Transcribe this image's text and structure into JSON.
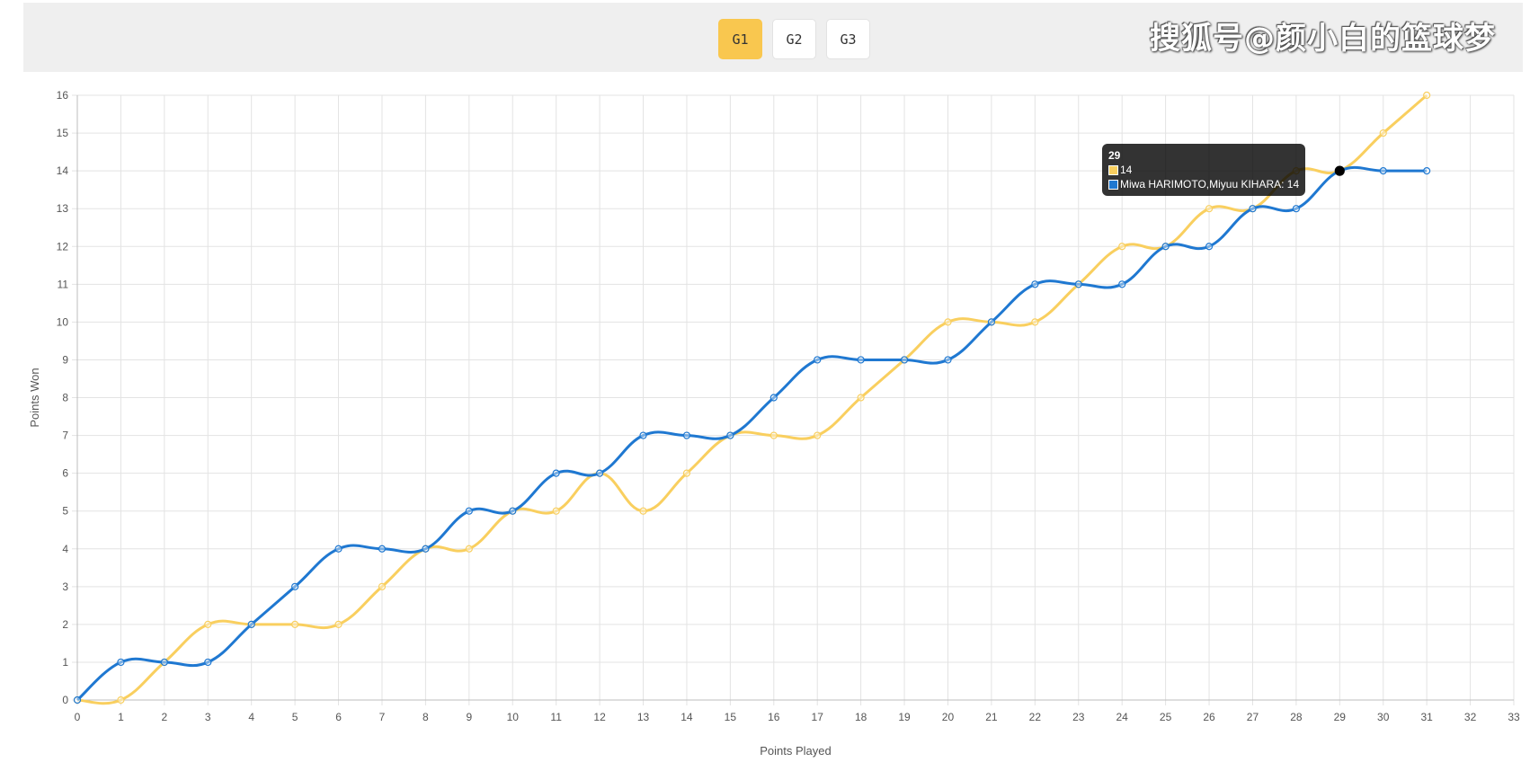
{
  "tabs": [
    {
      "label": "G1",
      "active": true
    },
    {
      "label": "G2",
      "active": false
    },
    {
      "label": "G3",
      "active": false
    }
  ],
  "watermark": "搜狐号@颜小白的篮球梦",
  "colors": {
    "series_a": "#f9cf5f",
    "series_b": "#1f78d1"
  },
  "tooltip": {
    "title": "29",
    "lines": [
      "14",
      "Miwa HARIMOTO,Miyuu KIHARA: 14"
    ]
  },
  "chart_data": {
    "type": "line",
    "xlabel": "Points Played",
    "ylabel": "Points Won",
    "xlim": [
      0,
      33
    ],
    "ylim": [
      0,
      16
    ],
    "grid": true,
    "x": [
      0,
      1,
      2,
      3,
      4,
      5,
      6,
      7,
      8,
      9,
      10,
      11,
      12,
      13,
      14,
      15,
      16,
      17,
      18,
      19,
      20,
      21,
      22,
      23,
      24,
      25,
      26,
      27,
      28,
      29,
      30,
      31
    ],
    "series": [
      {
        "name": "",
        "color": "#f9cf5f",
        "values": [
          0,
          0,
          1,
          2,
          2,
          2,
          2,
          3,
          4,
          4,
          5,
          5,
          6,
          5,
          6,
          7,
          7,
          7,
          8,
          9,
          10,
          10,
          10,
          11,
          12,
          12,
          13,
          13,
          14,
          14,
          15,
          16
        ]
      },
      {
        "name": "Miwa HARIMOTO,Miyuu KIHARA",
        "color": "#1f78d1",
        "values": [
          0,
          1,
          1,
          1,
          2,
          3,
          4,
          4,
          4,
          5,
          5,
          6,
          6,
          7,
          7,
          7,
          8,
          9,
          9,
          9,
          9,
          10,
          11,
          11,
          11,
          12,
          12,
          13,
          13,
          14,
          14,
          14
        ]
      }
    ],
    "highlight_x": 29
  }
}
